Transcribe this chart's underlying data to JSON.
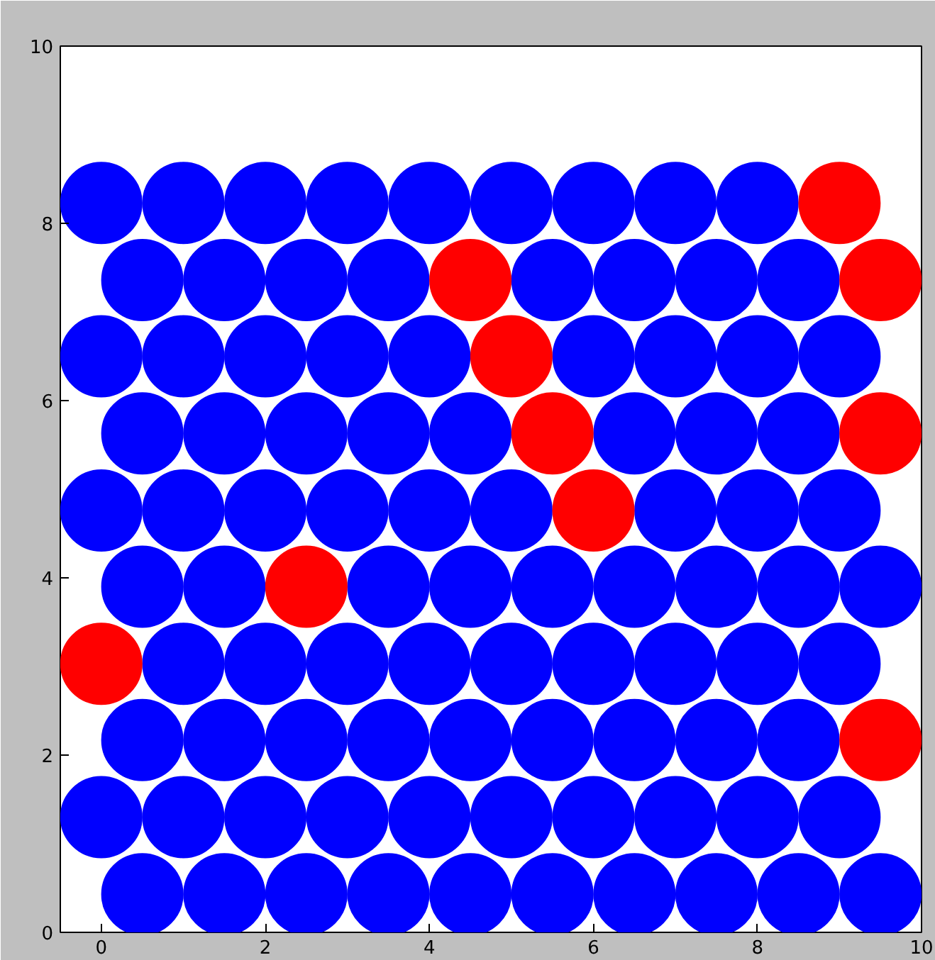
{
  "chart_data": {
    "type": "scatter",
    "marker": "circle",
    "grid": false,
    "xlim": [
      -0.5,
      10
    ],
    "ylim": [
      0,
      10
    ],
    "xticks": [
      0,
      2,
      4,
      6,
      8,
      10
    ],
    "yticks": [
      0,
      2,
      4,
      6,
      8,
      10
    ],
    "series": [
      {
        "color": "#0000ff",
        "x": [
          0.5,
          1.5,
          2.5,
          3.5,
          4.5,
          5.5,
          6.5,
          7.5,
          8.5,
          9.5,
          0,
          1,
          2,
          3,
          4,
          5,
          6,
          7,
          8,
          9,
          0.5,
          1.5,
          2.5,
          3.5,
          4.5,
          5.5,
          6.5,
          7.5,
          8.5,
          1,
          2,
          3,
          4,
          5,
          6,
          7,
          8,
          9,
          0.5,
          1.5,
          3.5,
          4.5,
          5.5,
          6.5,
          7.5,
          8.5,
          9.5,
          0,
          1,
          2,
          3,
          4,
          5,
          7,
          8,
          9,
          0.5,
          1.5,
          2.5,
          3.5,
          4.5,
          6.5,
          7.5,
          8.5,
          0,
          1,
          2,
          3,
          4,
          6,
          7,
          8,
          9,
          0.5,
          1.5,
          2.5,
          3.5,
          5.5,
          6.5,
          7.5,
          8.5,
          0,
          1,
          2,
          3,
          4,
          5,
          6,
          7,
          8
        ],
        "values": [
          0.43,
          0.43,
          0.43,
          0.43,
          0.43,
          0.43,
          0.43,
          0.43,
          0.43,
          0.43,
          1.3,
          1.3,
          1.3,
          1.3,
          1.3,
          1.3,
          1.3,
          1.3,
          1.3,
          1.3,
          2.17,
          2.17,
          2.17,
          2.17,
          2.17,
          2.17,
          2.17,
          2.17,
          2.17,
          3.03,
          3.03,
          3.03,
          3.03,
          3.03,
          3.03,
          3.03,
          3.03,
          3.03,
          3.9,
          3.9,
          3.9,
          3.9,
          3.9,
          3.9,
          3.9,
          3.9,
          3.9,
          4.76,
          4.76,
          4.76,
          4.76,
          4.76,
          4.76,
          4.76,
          4.76,
          4.76,
          5.63,
          5.63,
          5.63,
          5.63,
          5.63,
          5.63,
          5.63,
          5.63,
          6.5,
          6.5,
          6.5,
          6.5,
          6.5,
          6.5,
          6.5,
          6.5,
          6.5,
          7.36,
          7.36,
          7.36,
          7.36,
          7.36,
          7.36,
          7.36,
          7.36,
          8.23,
          8.23,
          8.23,
          8.23,
          8.23,
          8.23,
          8.23,
          8.23,
          8.23
        ]
      },
      {
        "color": "#ff0000",
        "x": [
          9.5,
          0,
          2.5,
          6,
          5.5,
          9.5,
          5,
          4.5,
          9.5,
          9
        ],
        "values": [
          2.17,
          3.03,
          3.9,
          4.76,
          5.63,
          5.63,
          6.5,
          7.36,
          7.36,
          8.23
        ]
      }
    ]
  }
}
